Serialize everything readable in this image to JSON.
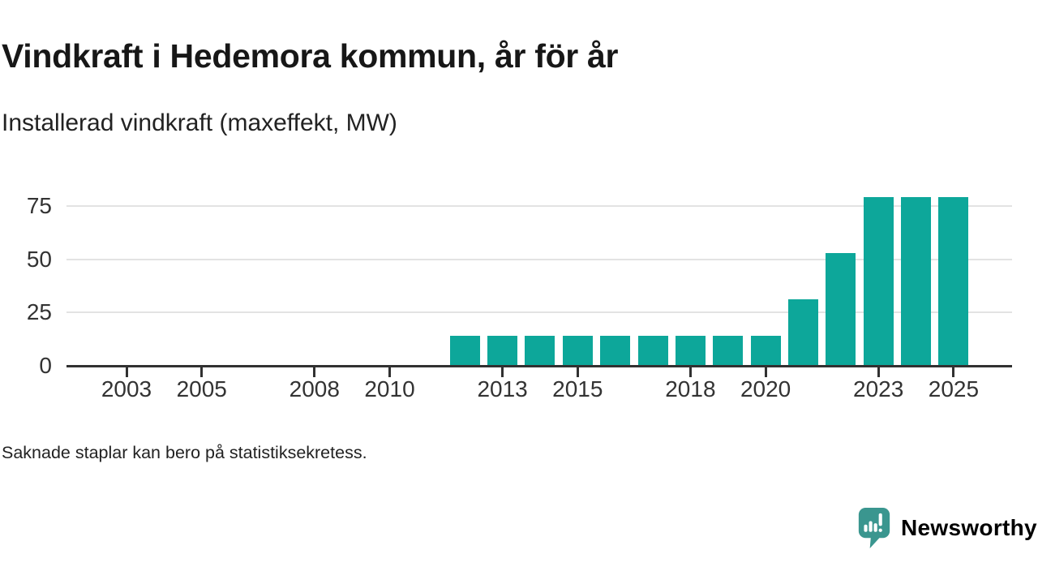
{
  "chart_data": {
    "type": "bar",
    "title": "Vindkraft i Hedemora kommun, år för år",
    "subtitle": "Installerad vindkraft (maxeffekt, MW)",
    "unit": "MW",
    "x": [
      2002,
      2003,
      2004,
      2005,
      2006,
      2007,
      2008,
      2009,
      2010,
      2011,
      2012,
      2013,
      2014,
      2015,
      2016,
      2017,
      2018,
      2019,
      2020,
      2021,
      2022,
      2023,
      2024,
      2025
    ],
    "values": [
      null,
      null,
      null,
      null,
      null,
      null,
      null,
      null,
      null,
      null,
      14,
      14,
      14,
      14,
      14,
      14,
      14,
      14,
      14,
      31,
      53,
      79,
      79,
      79
    ],
    "xticks": [
      2003,
      2005,
      2008,
      2010,
      2013,
      2015,
      2018,
      2020,
      2023,
      2025
    ],
    "yticks": [
      0,
      25,
      50,
      75
    ],
    "xlim": [
      2001.4,
      2026.6
    ],
    "ylim": [
      0,
      83
    ],
    "grid": "horizontal",
    "legend": "none",
    "bar_color": "#0da79a",
    "note": "Saknade staplar kan bero på statistiksekretess."
  },
  "branding": {
    "wordmark": "Newsworthy",
    "brand_color": "#3a968f",
    "icon": "newsworthy-speech-bubble-chart-icon"
  }
}
